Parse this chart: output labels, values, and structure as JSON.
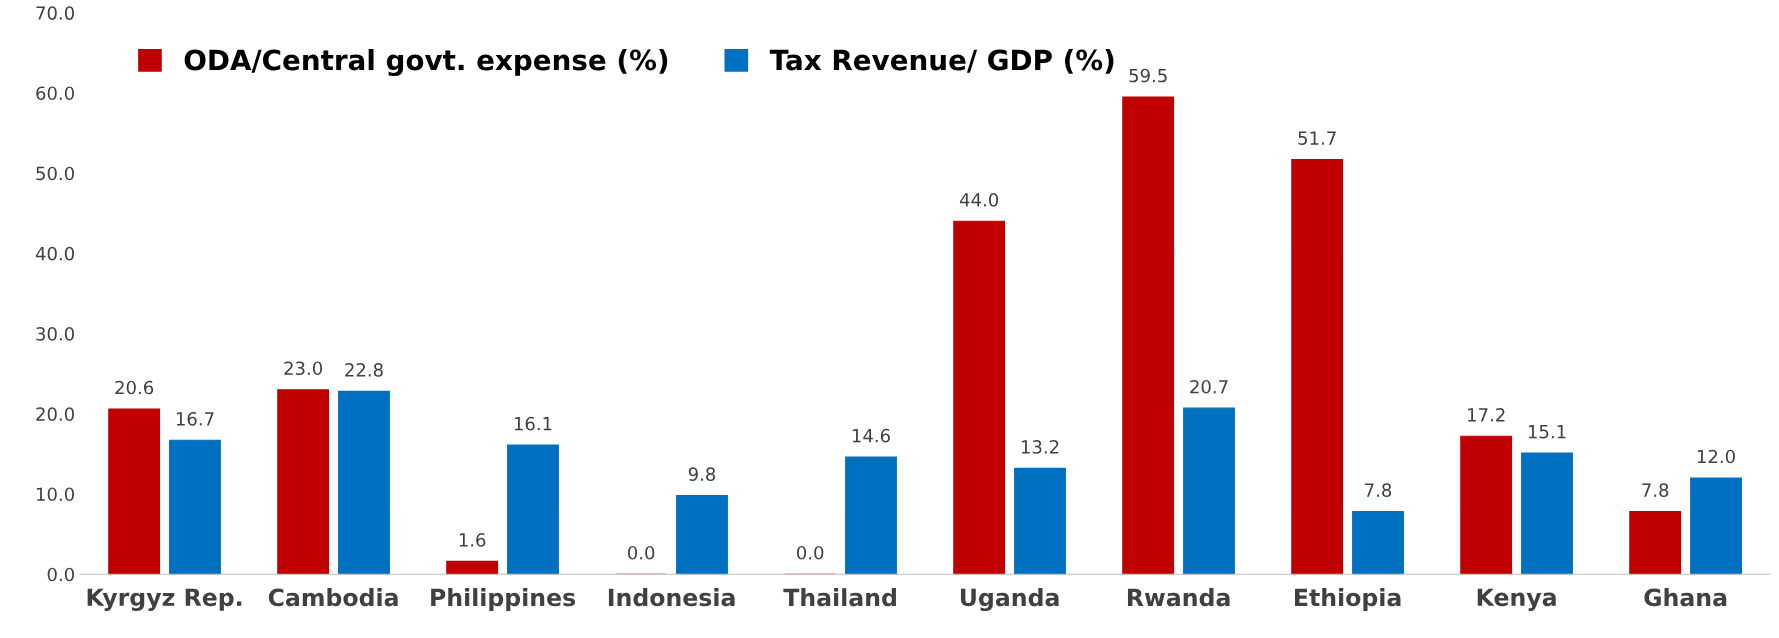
{
  "chart_data": {
    "type": "bar",
    "categories": [
      "Kyrgyz Rep.",
      "Cambodia",
      "Philippines",
      "Indonesia",
      "Thailand",
      "Uganda",
      "Rwanda",
      "Ethiopia",
      "Kenya",
      "Ghana"
    ],
    "series": [
      {
        "name": "ODA/Central govt. expense (%)",
        "color": "#c00000",
        "values": [
          20.6,
          23.0,
          1.6,
          0.0,
          0.0,
          44.0,
          59.5,
          51.7,
          17.2,
          7.8
        ],
        "value_labels": [
          "20.6",
          "23.0",
          "1.6",
          "0.0",
          "0.0",
          "44.0",
          "59.5",
          "51.7",
          "17.2",
          "7.8"
        ]
      },
      {
        "name": "Tax Revenue/ GDP (%)",
        "color": "#0070c0",
        "values": [
          16.7,
          22.8,
          16.1,
          9.8,
          14.6,
          13.2,
          20.7,
          7.8,
          15.1,
          12.0
        ],
        "value_labels": [
          "16.7",
          "22.8",
          "16.1",
          "9.8",
          "14.6",
          "13.2",
          "20.7",
          "7.8",
          "15.1",
          "12.0"
        ]
      }
    ],
    "ylim": [
      0,
      70
    ],
    "yticks": [
      {
        "value": 0,
        "label": "0.0"
      },
      {
        "value": 10,
        "label": "10.0"
      },
      {
        "value": 20,
        "label": "20.0"
      },
      {
        "value": 30,
        "label": "30.0"
      },
      {
        "value": 40,
        "label": "40.0"
      },
      {
        "value": 50,
        "label": "50.0"
      },
      {
        "value": 60,
        "label": "60.0"
      },
      {
        "value": 70,
        "label": "70.0"
      }
    ],
    "grid": false,
    "legend": "top left"
  }
}
